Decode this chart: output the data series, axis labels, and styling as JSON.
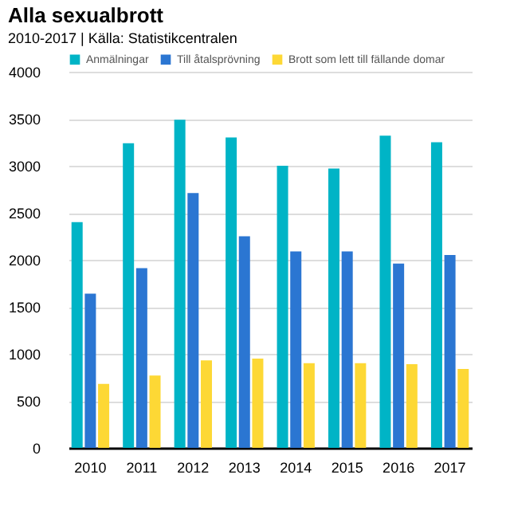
{
  "chart_data": {
    "type": "bar",
    "title": "Alla sexualbrott",
    "subtitle": "2010-2017 | Källa: Statistikcentralen",
    "categories": [
      "2010",
      "2011",
      "2012",
      "2013",
      "2014",
      "2015",
      "2016",
      "2017"
    ],
    "series": [
      {
        "name": "Anmälningar",
        "color": "#00b4c6",
        "values": [
          2400,
          3240,
          3490,
          3300,
          3000,
          2970,
          3320,
          3250
        ]
      },
      {
        "name": "Till åtalsprövning",
        "color": "#2b76d2",
        "values": [
          1640,
          1910,
          2710,
          2250,
          2090,
          2090,
          1960,
          2050
        ]
      },
      {
        "name": "Brott som lett till fällande domar",
        "color": "#fdd835",
        "values": [
          680,
          770,
          930,
          950,
          900,
          900,
          890,
          840
        ]
      }
    ],
    "ylim": [
      0,
      4000
    ],
    "yticks": [
      0,
      500,
      1000,
      1500,
      2000,
      2500,
      3000,
      3500,
      4000
    ],
    "grid": "y",
    "legend": "top left"
  }
}
